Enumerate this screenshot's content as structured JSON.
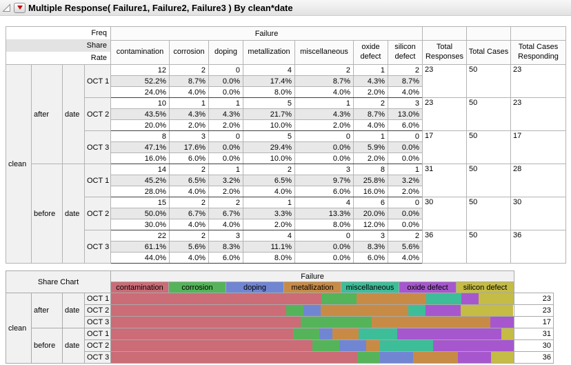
{
  "title": "Multiple Response( Failure1, Failure2, Failure3 ) By clean*date",
  "main_table": {
    "measure_labels": [
      "Freq",
      "Share",
      "Rate"
    ],
    "group_header": "Failure",
    "failure_columns": [
      "contamination",
      "corrosion",
      "doping",
      "metallization",
      "miscellaneous",
      "oxide defect",
      "silicon defect"
    ],
    "total_columns": [
      "Total Responses",
      "Total Cases",
      "Total Cases Responding"
    ],
    "clean_label": "clean",
    "date_label": "date",
    "groups": [
      {
        "clean": "after",
        "dates": [
          {
            "label": "OCT 1",
            "freq": [
              "12",
              "2",
              "0",
              "4",
              "2",
              "1",
              "2"
            ],
            "share": [
              "52.2%",
              "8.7%",
              "0.0%",
              "17.4%",
              "8.7%",
              "4.3%",
              "8.7%"
            ],
            "rate": [
              "24.0%",
              "4.0%",
              "0.0%",
              "8.0%",
              "4.0%",
              "2.0%",
              "4.0%"
            ],
            "totals": [
              "23",
              "50",
              "23"
            ]
          },
          {
            "label": "OCT 2",
            "freq": [
              "10",
              "1",
              "1",
              "5",
              "1",
              "2",
              "3"
            ],
            "share": [
              "43.5%",
              "4.3%",
              "4.3%",
              "21.7%",
              "4.3%",
              "8.7%",
              "13.0%"
            ],
            "rate": [
              "20.0%",
              "2.0%",
              "2.0%",
              "10.0%",
              "2.0%",
              "4.0%",
              "6.0%"
            ],
            "totals": [
              "23",
              "50",
              "23"
            ]
          },
          {
            "label": "OCT 3",
            "freq": [
              "8",
              "3",
              "0",
              "5",
              "0",
              "1",
              "0"
            ],
            "share": [
              "47.1%",
              "17.6%",
              "0.0%",
              "29.4%",
              "0.0%",
              "5.9%",
              "0.0%"
            ],
            "rate": [
              "16.0%",
              "6.0%",
              "0.0%",
              "10.0%",
              "0.0%",
              "2.0%",
              "0.0%"
            ],
            "totals": [
              "17",
              "50",
              "17"
            ]
          }
        ]
      },
      {
        "clean": "before",
        "dates": [
          {
            "label": "OCT 1",
            "freq": [
              "14",
              "2",
              "1",
              "2",
              "3",
              "8",
              "1"
            ],
            "share": [
              "45.2%",
              "6.5%",
              "3.2%",
              "6.5%",
              "9.7%",
              "25.8%",
              "3.2%"
            ],
            "rate": [
              "28.0%",
              "4.0%",
              "2.0%",
              "4.0%",
              "6.0%",
              "16.0%",
              "2.0%"
            ],
            "totals": [
              "31",
              "50",
              "28"
            ]
          },
          {
            "label": "OCT 2",
            "freq": [
              "15",
              "2",
              "2",
              "1",
              "4",
              "6",
              "0"
            ],
            "share": [
              "50.0%",
              "6.7%",
              "6.7%",
              "3.3%",
              "13.3%",
              "20.0%",
              "0.0%"
            ],
            "rate": [
              "30.0%",
              "4.0%",
              "4.0%",
              "2.0%",
              "8.0%",
              "12.0%",
              "0.0%"
            ],
            "totals": [
              "30",
              "50",
              "30"
            ]
          },
          {
            "label": "OCT 3",
            "freq": [
              "22",
              "2",
              "3",
              "4",
              "0",
              "3",
              "2"
            ],
            "share": [
              "61.1%",
              "5.6%",
              "8.3%",
              "11.1%",
              "0.0%",
              "8.3%",
              "5.6%"
            ],
            "rate": [
              "44.0%",
              "4.0%",
              "6.0%",
              "8.0%",
              "0.0%",
              "6.0%",
              "4.0%"
            ],
            "totals": [
              "36",
              "50",
              "36"
            ]
          }
        ]
      }
    ]
  },
  "share_chart": {
    "title": "Share Chart",
    "group_header": "Failure",
    "clean_label": "clean",
    "date_label": "date",
    "legend": [
      {
        "label": "contamination",
        "color": "#cb6c77"
      },
      {
        "label": "corrosion",
        "color": "#55b45a"
      },
      {
        "label": "doping",
        "color": "#7186d3"
      },
      {
        "label": "metallization",
        "color": "#c88b46"
      },
      {
        "label": "miscellaneous",
        "color": "#3ebd99"
      },
      {
        "label": "oxide defect",
        "color": "#a757ce"
      },
      {
        "label": "silicon defect",
        "color": "#c4bc45"
      }
    ],
    "rows": [
      {
        "clean": "after",
        "date": "OCT 1",
        "shares": [
          52.2,
          8.7,
          0,
          17.4,
          8.7,
          4.3,
          8.7
        ],
        "count": "23"
      },
      {
        "clean": "after",
        "date": "OCT 2",
        "shares": [
          43.5,
          4.3,
          4.3,
          21.7,
          4.3,
          8.7,
          13.0
        ],
        "count": "23"
      },
      {
        "clean": "after",
        "date": "OCT 3",
        "shares": [
          47.1,
          17.6,
          0,
          29.4,
          0,
          5.9,
          0
        ],
        "count": "17"
      },
      {
        "clean": "before",
        "date": "OCT 1",
        "shares": [
          45.2,
          6.5,
          3.2,
          6.5,
          9.7,
          25.8,
          3.2
        ],
        "count": "31"
      },
      {
        "clean": "before",
        "date": "OCT 2",
        "shares": [
          50.0,
          6.7,
          6.7,
          3.3,
          13.3,
          20.0,
          0
        ],
        "count": "30"
      },
      {
        "clean": "before",
        "date": "OCT 3",
        "shares": [
          61.1,
          5.6,
          8.3,
          11.1,
          0,
          8.3,
          5.6
        ],
        "count": "36"
      }
    ]
  }
}
